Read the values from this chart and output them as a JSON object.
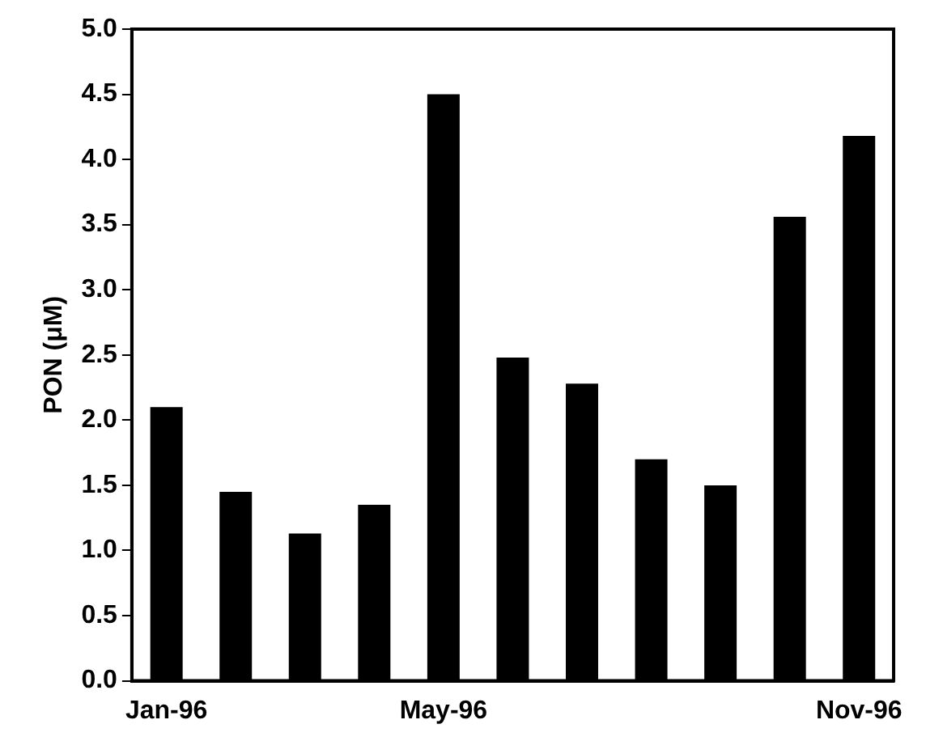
{
  "chart_data": {
    "type": "bar",
    "ylabel": "PON (μM)",
    "categories": [
      "Jan-96",
      null,
      null,
      null,
      "May-96",
      null,
      null,
      null,
      null,
      null,
      "Nov-96"
    ],
    "values": [
      2.1,
      1.45,
      1.13,
      1.35,
      4.5,
      2.48,
      2.28,
      1.7,
      1.5,
      3.56,
      4.18
    ],
    "color": "#000000",
    "ylim": [
      0,
      5
    ],
    "yticks": [
      {
        "value": 0,
        "label": "0.0"
      },
      {
        "value": 0.5,
        "label": "0.5"
      },
      {
        "value": 1,
        "label": "1.0"
      },
      {
        "value": 1.5,
        "label": "1.5"
      },
      {
        "value": 2,
        "label": "2.0"
      },
      {
        "value": 2.5,
        "label": "2.5"
      },
      {
        "value": 3,
        "label": "3.0"
      },
      {
        "value": 3.5,
        "label": "3.5"
      },
      {
        "value": 4,
        "label": "4.0"
      },
      {
        "value": 4.5,
        "label": "4.5"
      },
      {
        "value": 5,
        "label": "5.0"
      }
    ],
    "grid": false,
    "legend": false
  }
}
